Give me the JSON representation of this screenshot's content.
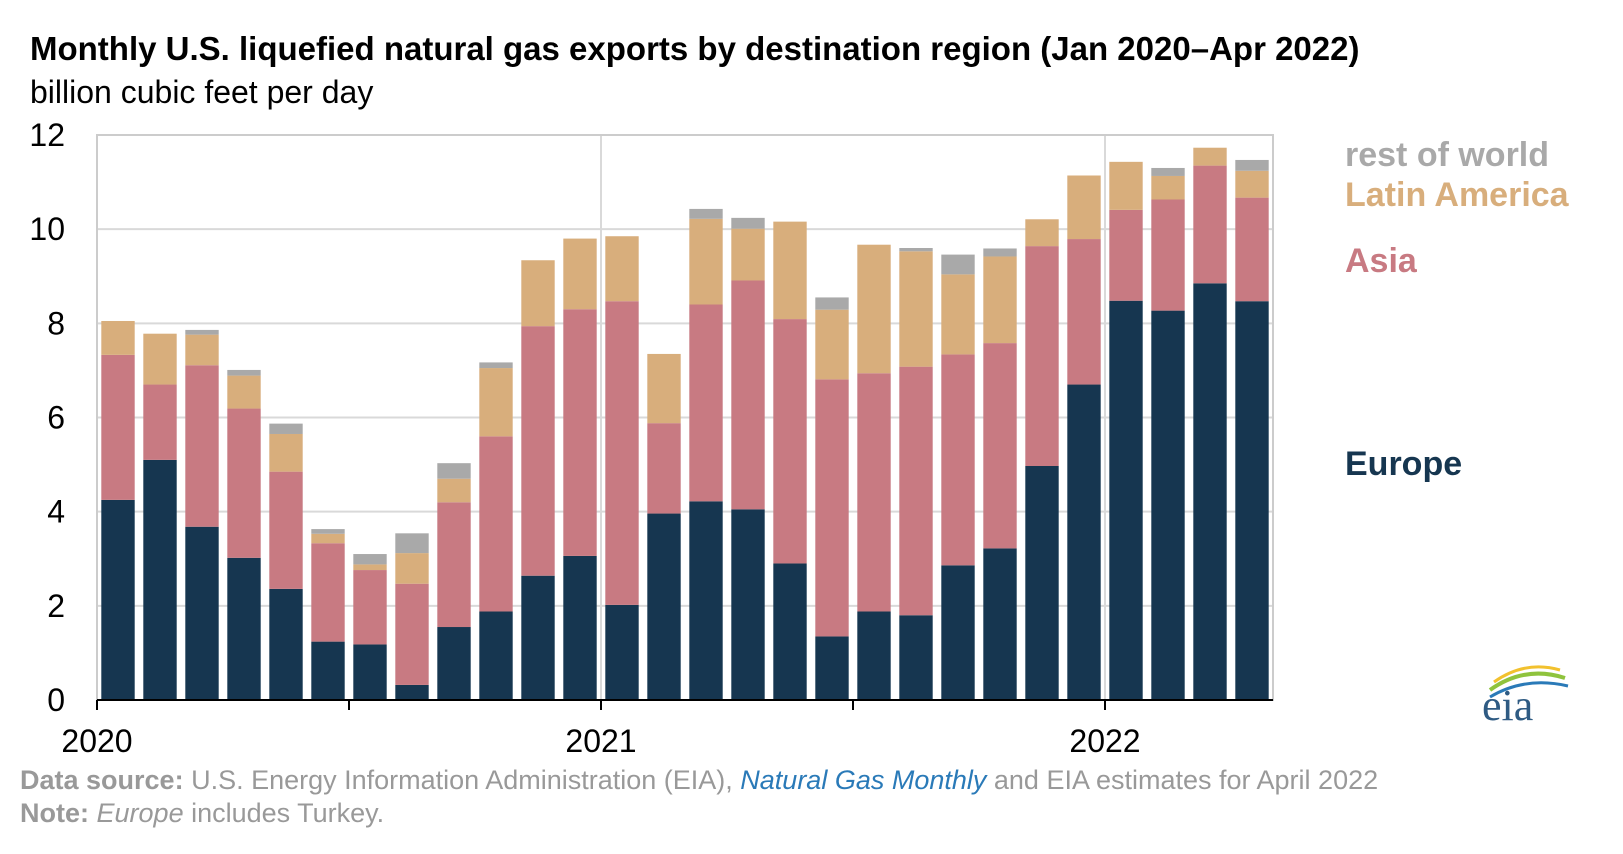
{
  "chart_data": {
    "type": "bar",
    "stacked": true,
    "title": "Monthly U.S. liquefied natural gas exports by destination region (Jan 2020–Apr 2022)",
    "subtitle": "billion cubic feet per day",
    "ylim": [
      0,
      12
    ],
    "yticks": [
      0,
      2,
      4,
      6,
      8,
      10,
      12
    ],
    "xtick_labels": [
      "2020",
      "2021",
      "2022"
    ],
    "grid": true,
    "legend_placement": "right",
    "categories": [
      "Jan 2020",
      "Feb 2020",
      "Mar 2020",
      "Apr 2020",
      "May 2020",
      "Jun 2020",
      "Jul 2020",
      "Aug 2020",
      "Sep 2020",
      "Oct 2020",
      "Nov 2020",
      "Dec 2020",
      "Jan 2021",
      "Feb 2021",
      "Mar 2021",
      "Apr 2021",
      "May 2021",
      "Jun 2021",
      "Jul 2021",
      "Aug 2021",
      "Sep 2021",
      "Oct 2021",
      "Nov 2021",
      "Dec 2021",
      "Jan 2022",
      "Feb 2022",
      "Mar 2022",
      "Apr 2022"
    ],
    "series": [
      {
        "name": "Europe",
        "color": "#163650",
        "values": [
          4.25,
          5.1,
          3.68,
          3.02,
          2.36,
          1.24,
          1.18,
          0.32,
          1.55,
          1.88,
          2.64,
          3.06,
          2.02,
          3.96,
          4.22,
          4.05,
          2.9,
          1.35,
          1.88,
          1.8,
          2.86,
          3.22,
          4.97,
          6.7,
          8.48,
          8.27,
          8.85,
          8.47
        ]
      },
      {
        "name": "Asia",
        "color": "#c87a82",
        "values": [
          3.08,
          1.6,
          3.43,
          3.17,
          2.49,
          2.09,
          1.58,
          2.15,
          2.65,
          3.72,
          5.3,
          5.24,
          6.45,
          1.92,
          4.18,
          4.86,
          5.19,
          5.46,
          5.06,
          5.28,
          4.48,
          4.36,
          4.67,
          3.09,
          1.93,
          2.36,
          2.5,
          2.2
        ]
      },
      {
        "name": "Latin America",
        "color": "#d8ae7c",
        "values": [
          0.72,
          1.08,
          0.65,
          0.7,
          0.8,
          0.2,
          0.12,
          0.65,
          0.5,
          1.45,
          1.4,
          1.5,
          1.38,
          1.47,
          1.82,
          1.1,
          2.07,
          1.48,
          2.73,
          2.45,
          1.7,
          1.84,
          0.57,
          1.35,
          1.02,
          0.5,
          0.38,
          0.57
        ]
      },
      {
        "name": "rest of world",
        "color": "#a9a9a9",
        "values": [
          0,
          0,
          0.1,
          0.12,
          0.22,
          0.1,
          0.22,
          0.42,
          0.33,
          0.12,
          0,
          0,
          0,
          0,
          0.21,
          0.23,
          0,
          0.26,
          0,
          0.07,
          0.42,
          0.17,
          0,
          0,
          0,
          0.17,
          0,
          0.23
        ]
      }
    ]
  },
  "footer": {
    "source_label": "Data source:",
    "source_pre": " U.S. Energy Information Administration (EIA), ",
    "source_pub": "Natural Gas Monthly",
    "source_post": " and EIA estimates for April 2022",
    "note_label": "Note:",
    "note_italic": "Europe",
    "note_post": " includes Turkey."
  },
  "logo": {
    "text": "eia",
    "colors": [
      "#2a7ab8",
      "#8fc33d",
      "#f2c12e"
    ]
  }
}
